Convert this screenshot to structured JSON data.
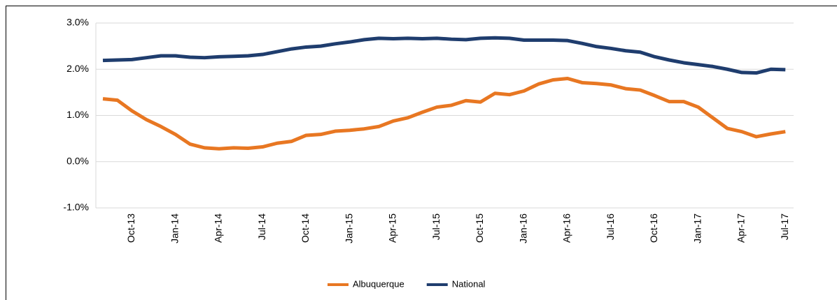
{
  "chart_data": {
    "type": "line",
    "categories": [
      null,
      null,
      "Oct-13",
      null,
      null,
      "Jan-14",
      null,
      null,
      "Apr-14",
      null,
      null,
      "Jul-14",
      null,
      null,
      "Oct-14",
      null,
      null,
      "Jan-15",
      null,
      null,
      "Apr-15",
      null,
      null,
      "Jul-15",
      null,
      null,
      "Oct-15",
      null,
      null,
      "Jan-16",
      null,
      null,
      "Apr-16",
      null,
      null,
      "Jul-16",
      null,
      null,
      "Oct-16",
      null,
      null,
      "Jan-17",
      null,
      null,
      "Apr-17",
      null,
      null,
      "Jul-17"
    ],
    "series": [
      {
        "name": "Albuquerque",
        "color": "#e87722",
        "values": [
          1.36,
          1.33,
          1.1,
          0.91,
          0.76,
          0.59,
          0.38,
          0.3,
          0.28,
          0.3,
          0.29,
          0.32,
          0.4,
          0.44,
          0.57,
          0.59,
          0.66,
          0.68,
          0.71,
          0.76,
          0.88,
          0.95,
          1.07,
          1.18,
          1.22,
          1.32,
          1.29,
          1.48,
          1.45,
          1.53,
          1.68,
          1.77,
          1.8,
          1.71,
          1.69,
          1.66,
          1.58,
          1.55,
          1.43,
          1.3,
          1.3,
          1.18,
          0.95,
          0.72,
          0.65,
          0.54,
          0.6,
          0.65
        ]
      },
      {
        "name": "National",
        "color": "#1f3d6e",
        "values": [
          2.19,
          2.2,
          2.21,
          2.25,
          2.29,
          2.29,
          2.26,
          2.25,
          2.27,
          2.28,
          2.29,
          2.32,
          2.38,
          2.44,
          2.48,
          2.5,
          2.55,
          2.59,
          2.64,
          2.67,
          2.66,
          2.67,
          2.66,
          2.67,
          2.65,
          2.64,
          2.67,
          2.68,
          2.67,
          2.63,
          2.63,
          2.63,
          2.62,
          2.56,
          2.49,
          2.45,
          2.4,
          2.37,
          2.27,
          2.2,
          2.14,
          2.1,
          2.06,
          2.0,
          1.93,
          1.92,
          2.0,
          1.99
        ]
      }
    ],
    "ylim": [
      -1,
      3
    ],
    "yticks": [
      {
        "value": -1,
        "label": "-1.0%"
      },
      {
        "value": 0,
        "label": "0.0%"
      },
      {
        "value": 1,
        "label": "1.0%"
      },
      {
        "value": 2,
        "label": "2.0%"
      },
      {
        "value": 3,
        "label": "3.0%"
      }
    ],
    "grid": true,
    "legend": "bottom"
  }
}
